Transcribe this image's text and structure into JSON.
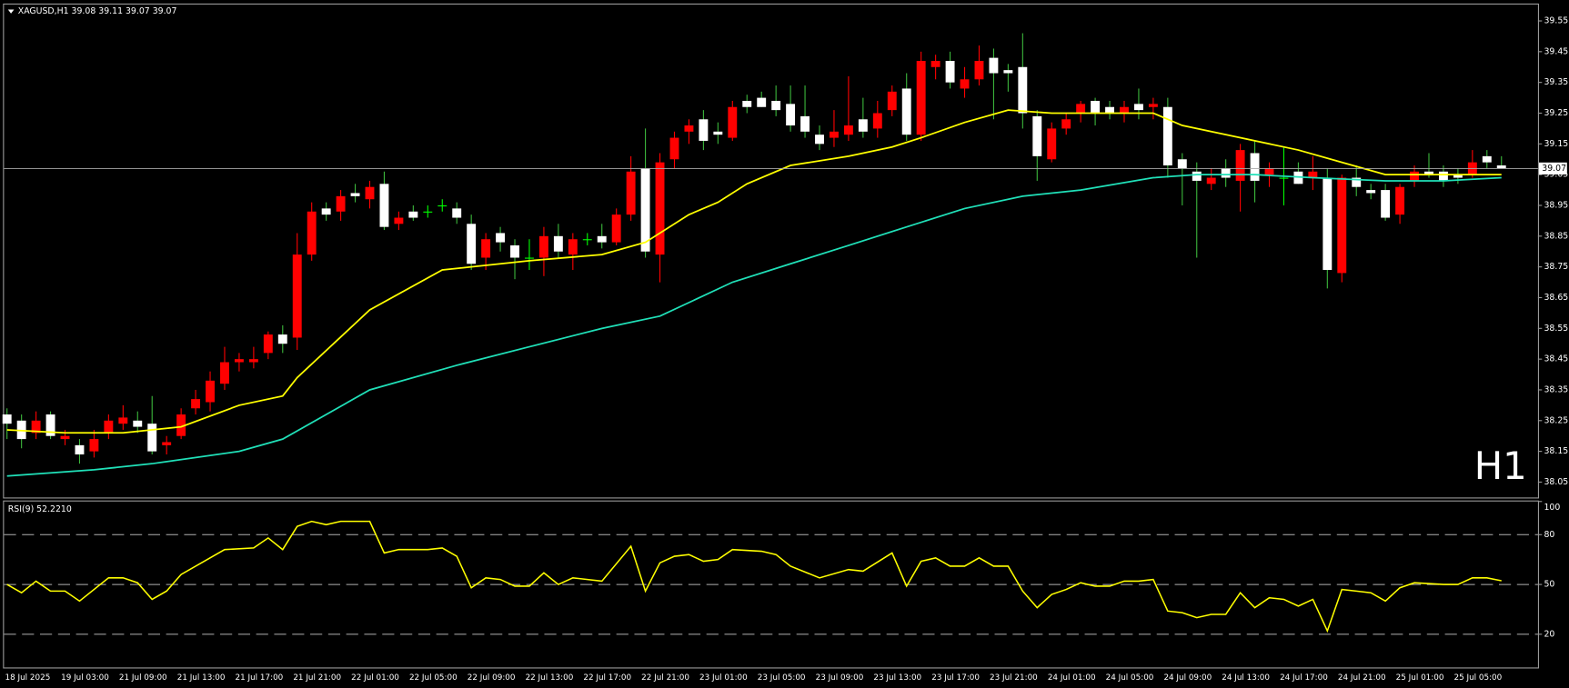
{
  "chart_data": [
    {
      "type": "candlestick",
      "title": "XAGUSD,H1  39.08 39.11 39.07 39.07",
      "watermark": "H1",
      "watermark_color": "#e0141e",
      "categories": [
        "18 Jul 2025",
        null,
        null,
        null,
        "19 Jul 03:00",
        null,
        null,
        null,
        "21 Jul 09:00",
        null,
        null,
        null,
        "21 Jul 13:00",
        null,
        null,
        null,
        "21 Jul 17:00",
        null,
        null,
        null,
        "21 Jul 21:00",
        null,
        null,
        null,
        "22 Jul 01:00",
        null,
        null,
        null,
        "22 Jul 05:00",
        null,
        null,
        null,
        "22 Jul 09:00",
        null,
        null,
        null,
        "22 Jul 13:00",
        null,
        null,
        null,
        "22 Jul 17:00",
        null,
        null,
        null,
        "22 Jul 21:00",
        null,
        null,
        null,
        "23 Jul 01:00",
        null,
        null,
        null,
        "23 Jul 05:00",
        null,
        null,
        null,
        "23 Jul 09:00",
        null,
        null,
        null,
        "23 Jul 13:00",
        null,
        null,
        null,
        "23 Jul 17:00",
        null,
        null,
        null,
        "23 Jul 21:00",
        null,
        null,
        null,
        "24 Jul 01:00",
        null,
        null,
        null,
        "24 Jul 05:00",
        null,
        null,
        null,
        "24 Jul 09:00",
        null,
        null,
        null,
        "24 Jul 13:00",
        null,
        null,
        null,
        "24 Jul 17:00",
        null,
        null,
        null,
        "24 Jul 21:00",
        null,
        null,
        null,
        "25 Jul 01:00",
        null,
        null,
        null,
        "25 Jul 05:00",
        null,
        null,
        null
      ],
      "open": [
        38.27,
        38.25,
        38.21,
        38.27,
        38.19,
        38.17,
        38.15,
        38.21,
        38.24,
        38.25,
        38.24,
        38.17,
        38.2,
        38.29,
        38.31,
        38.37,
        38.44,
        38.44,
        38.47,
        38.53,
        38.52,
        38.79,
        38.94,
        38.93,
        38.99,
        38.97,
        39.02,
        38.89,
        38.93,
        38.93,
        38.95,
        38.94,
        38.89,
        38.78,
        38.86,
        38.82,
        38.78,
        38.78,
        38.85,
        38.79,
        38.84,
        38.85,
        38.83,
        38.92,
        39.07,
        38.79,
        39.1,
        39.19,
        39.23,
        39.19,
        39.17,
        39.29,
        39.3,
        39.29,
        39.28,
        39.24,
        39.18,
        39.17,
        39.18,
        39.23,
        39.2,
        39.26,
        39.33,
        39.18,
        39.4,
        39.42,
        39.33,
        39.36,
        39.43,
        39.39,
        39.4,
        39.24,
        39.1,
        39.2,
        39.25,
        39.29,
        39.27,
        39.25,
        39.28,
        39.27,
        39.27,
        39.1,
        39.06,
        39.02,
        39.07,
        39.03,
        39.12,
        39.05,
        39.04,
        39.06,
        39.04,
        39.04,
        38.73,
        39.04,
        39.0,
        39.0,
        38.92,
        39.03,
        39.06,
        39.06,
        39.05,
        39.05,
        39.11,
        39.08
      ],
      "high": [
        38.29,
        38.27,
        38.28,
        38.28,
        38.22,
        38.19,
        38.22,
        38.27,
        38.3,
        38.28,
        38.33,
        38.2,
        38.29,
        38.35,
        38.41,
        38.49,
        38.47,
        38.49,
        38.54,
        38.56,
        38.86,
        38.96,
        38.96,
        39.0,
        39.02,
        39.03,
        39.06,
        38.93,
        38.95,
        38.95,
        38.97,
        38.96,
        38.92,
        38.86,
        38.88,
        38.84,
        38.84,
        38.88,
        38.89,
        38.86,
        38.86,
        38.89,
        38.94,
        39.11,
        39.2,
        39.12,
        39.19,
        39.23,
        39.26,
        39.22,
        39.29,
        39.31,
        39.32,
        39.34,
        39.34,
        39.34,
        39.21,
        39.26,
        39.37,
        39.3,
        39.29,
        39.34,
        39.38,
        39.45,
        39.44,
        39.45,
        39.4,
        39.47,
        39.46,
        39.41,
        39.51,
        39.26,
        39.22,
        39.25,
        39.29,
        39.3,
        39.29,
        39.29,
        39.33,
        39.3,
        39.3,
        39.12,
        39.09,
        39.07,
        39.1,
        39.15,
        39.16,
        39.09,
        39.14,
        39.09,
        39.11,
        39.07,
        39.05,
        39.08,
        39.02,
        39.02,
        39.02,
        39.08,
        39.12,
        39.08,
        39.07,
        39.13,
        39.13,
        39.11
      ],
      "low": [
        38.19,
        38.16,
        38.19,
        38.19,
        38.17,
        38.11,
        38.13,
        38.19,
        38.22,
        38.21,
        38.14,
        38.14,
        38.19,
        38.27,
        38.28,
        38.35,
        38.41,
        38.42,
        38.45,
        38.47,
        38.48,
        38.77,
        38.9,
        38.9,
        38.96,
        38.94,
        38.87,
        38.87,
        38.9,
        38.91,
        38.93,
        38.89,
        38.74,
        38.74,
        38.8,
        38.71,
        38.74,
        38.72,
        38.78,
        38.74,
        38.82,
        38.81,
        38.82,
        38.9,
        38.78,
        38.7,
        39.07,
        39.15,
        39.13,
        39.15,
        39.16,
        39.25,
        39.27,
        39.24,
        39.19,
        39.17,
        39.13,
        39.14,
        39.16,
        39.17,
        39.17,
        39.24,
        39.16,
        39.16,
        39.36,
        39.33,
        39.3,
        39.34,
        39.23,
        39.32,
        39.2,
        39.03,
        39.09,
        39.18,
        39.22,
        39.21,
        39.23,
        39.22,
        39.23,
        39.23,
        39.04,
        38.95,
        38.78,
        39.0,
        39.01,
        38.93,
        38.96,
        39.01,
        38.95,
        39.02,
        39.0,
        38.68,
        38.7,
        38.98,
        38.97,
        38.9,
        38.89,
        39.01,
        39.04,
        39.01,
        39.02,
        39.04,
        39.07,
        39.07
      ],
      "close": [
        38.24,
        38.19,
        38.25,
        38.2,
        38.2,
        38.14,
        38.19,
        38.25,
        38.26,
        38.23,
        38.15,
        38.18,
        38.27,
        38.32,
        38.38,
        38.44,
        38.45,
        38.45,
        38.53,
        38.5,
        38.79,
        38.93,
        38.92,
        38.98,
        38.98,
        39.01,
        38.88,
        38.91,
        38.91,
        38.93,
        38.95,
        38.91,
        38.76,
        38.84,
        38.83,
        38.78,
        38.78,
        38.85,
        38.8,
        38.84,
        38.84,
        38.83,
        38.92,
        39.06,
        38.8,
        39.09,
        39.17,
        39.21,
        39.16,
        39.18,
        39.27,
        39.27,
        39.27,
        39.26,
        39.21,
        39.19,
        39.15,
        39.19,
        39.21,
        39.19,
        39.25,
        39.32,
        39.18,
        39.42,
        39.42,
        39.35,
        39.36,
        39.42,
        39.38,
        39.38,
        39.25,
        39.11,
        39.2,
        39.23,
        39.28,
        39.25,
        39.25,
        39.27,
        39.26,
        39.28,
        39.08,
        39.07,
        39.03,
        39.04,
        39.04,
        39.13,
        39.03,
        39.07,
        39.04,
        39.02,
        39.06,
        38.74,
        39.04,
        39.01,
        38.99,
        38.91,
        39.01,
        39.06,
        39.05,
        39.03,
        39.04,
        39.09,
        39.09,
        39.07
      ],
      "up_color": "#ff0000",
      "down_color": "#ffffff",
      "doji_color": "#00ff00",
      "series": [
        {
          "color": "#ffff00",
          "x": [
            0,
            4,
            8,
            12,
            16,
            19,
            20,
            25,
            30,
            32,
            36,
            41,
            44,
            47,
            49,
            51,
            54,
            58,
            61,
            63,
            66,
            69,
            72,
            75,
            79,
            81,
            85,
            89,
            92,
            95,
            99,
            103
          ],
          "values": [
            38.22,
            38.21,
            38.21,
            38.23,
            38.3,
            38.33,
            38.39,
            38.61,
            38.74,
            38.75,
            38.77,
            38.79,
            38.83,
            38.92,
            38.96,
            39.02,
            39.08,
            39.11,
            39.14,
            39.17,
            39.22,
            39.26,
            39.25,
            39.25,
            39.25,
            39.21,
            39.17,
            39.13,
            39.09,
            39.05,
            39.05,
            39.05
          ]
        },
        {
          "color": "#20e0b8",
          "x": [
            0,
            6,
            10,
            16,
            19,
            25,
            31,
            36,
            41,
            45,
            50,
            54,
            58,
            62,
            66,
            70,
            74,
            79,
            82,
            86,
            90,
            95,
            99,
            103
          ],
          "values": [
            38.07,
            38.09,
            38.11,
            38.15,
            38.19,
            38.35,
            38.43,
            38.49,
            38.55,
            38.59,
            38.7,
            38.76,
            38.82,
            38.88,
            38.94,
            38.98,
            39.0,
            39.04,
            39.05,
            39.05,
            39.04,
            39.03,
            39.03,
            39.04
          ]
        }
      ],
      "last_price": 39.07,
      "ylim": [
        38.0,
        39.6
      ],
      "yticks": [
        39.55,
        39.45,
        39.35,
        39.25,
        39.15,
        39.05,
        38.95,
        38.85,
        38.75,
        38.65,
        38.55,
        38.45,
        38.35,
        38.25,
        38.15,
        38.05
      ]
    },
    {
      "type": "line",
      "title": "RSI(9) 52.2210",
      "color": "#ffff00",
      "x": [
        0,
        1,
        2,
        3,
        4,
        5,
        7,
        8,
        9,
        10,
        11,
        12,
        15,
        17,
        18,
        19,
        20,
        21,
        22,
        23,
        25,
        26,
        27,
        29,
        30,
        31,
        32,
        33,
        34,
        35,
        36,
        37,
        38,
        39,
        41,
        43,
        44,
        45,
        46,
        47,
        48,
        49,
        50,
        52,
        53,
        54,
        56,
        58,
        59,
        61,
        62,
        63,
        64,
        65,
        66,
        67,
        68,
        69,
        70,
        71,
        72,
        73,
        74,
        75,
        76,
        77,
        78,
        79,
        80,
        81,
        82,
        83,
        84,
        85,
        86,
        87,
        88,
        89,
        90,
        91,
        92,
        93,
        94,
        95,
        96,
        97,
        99,
        100,
        101,
        102,
        103
      ],
      "values": [
        50,
        45,
        52,
        46,
        46,
        40,
        54,
        54,
        51,
        41,
        46,
        56,
        71,
        72,
        78,
        71,
        85,
        88,
        86,
        88,
        88,
        69,
        71,
        71,
        72,
        67,
        48,
        54,
        53,
        49,
        49,
        57,
        50,
        54,
        52,
        73,
        46,
        63,
        67,
        68,
        64,
        65,
        71,
        70,
        68,
        61,
        54,
        59,
        58,
        69,
        49,
        64,
        66,
        61,
        61,
        66,
        61,
        61,
        46,
        36,
        44,
        47,
        51,
        49,
        49,
        52,
        52,
        53,
        34,
        33,
        30,
        32,
        32,
        45,
        36,
        42,
        41,
        37,
        41,
        22,
        47,
        46,
        45,
        40,
        48,
        51,
        50,
        50,
        54,
        54,
        52.221
      ],
      "levels": [
        80,
        50,
        20
      ],
      "ylim": [
        0,
        100
      ],
      "yticks": [
        100,
        80,
        50,
        20
      ]
    }
  ]
}
